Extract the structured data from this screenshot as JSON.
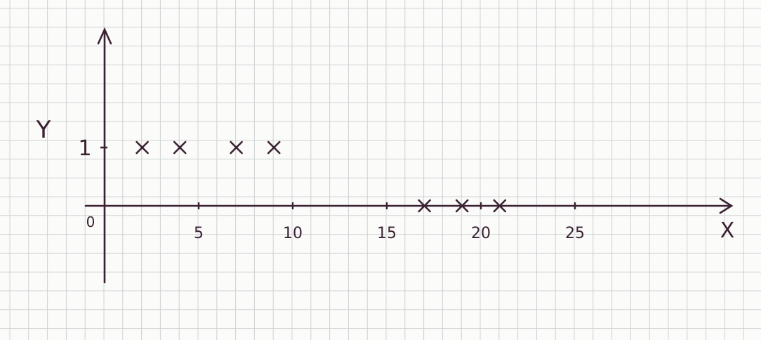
{
  "chart_data": {
    "type": "scatter",
    "title": "",
    "xlabel": "X",
    "ylabel": "Y",
    "origin_label": "0",
    "xticks": [
      5,
      10,
      15,
      20,
      25
    ],
    "xtick_labels": [
      "5",
      "10",
      "15",
      "20",
      "25"
    ],
    "yticks": [
      1
    ],
    "ytick_labels": [
      "1"
    ],
    "grid": true,
    "points": [
      {
        "x": 2,
        "y": 1
      },
      {
        "x": 4,
        "y": 1
      },
      {
        "x": 7,
        "y": 1
      },
      {
        "x": 9,
        "y": 1
      },
      {
        "x": 17,
        "y": 0
      },
      {
        "x": 19,
        "y": 0
      },
      {
        "x": 21,
        "y": 0
      }
    ],
    "marker": "x",
    "ink_color": "#3a2233",
    "grid_color": "#cfd3d6",
    "paper_color": "#fbfbf9"
  }
}
